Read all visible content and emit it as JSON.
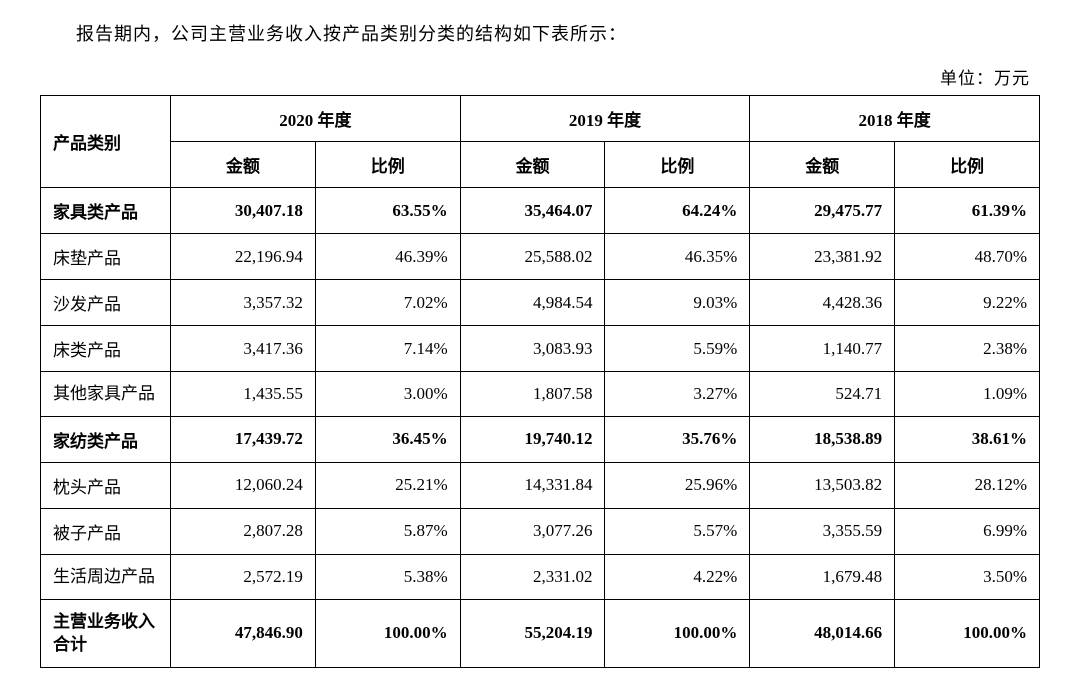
{
  "intro_text": "报告期内，公司主营业务收入按产品类别分类的结构如下表所示：",
  "unit_label": "单位：万元",
  "headers": {
    "category": "产品类别",
    "year2020": "2020 年度",
    "year2019": "2019 年度",
    "year2018": "2018 年度",
    "amount": "金额",
    "ratio": "比例"
  },
  "rows": [
    {
      "label": "家具类产品",
      "bold": true,
      "y2020_amount": "30,407.18",
      "y2020_ratio": "63.55%",
      "y2019_amount": "35,464.07",
      "y2019_ratio": "64.24%",
      "y2018_amount": "29,475.77",
      "y2018_ratio": "61.39%"
    },
    {
      "label": "床垫产品",
      "bold": false,
      "y2020_amount": "22,196.94",
      "y2020_ratio": "46.39%",
      "y2019_amount": "25,588.02",
      "y2019_ratio": "46.35%",
      "y2018_amount": "23,381.92",
      "y2018_ratio": "48.70%"
    },
    {
      "label": "沙发产品",
      "bold": false,
      "y2020_amount": "3,357.32",
      "y2020_ratio": "7.02%",
      "y2019_amount": "4,984.54",
      "y2019_ratio": "9.03%",
      "y2018_amount": "4,428.36",
      "y2018_ratio": "9.22%"
    },
    {
      "label": "床类产品",
      "bold": false,
      "y2020_amount": "3,417.36",
      "y2020_ratio": "7.14%",
      "y2019_amount": "3,083.93",
      "y2019_ratio": "5.59%",
      "y2018_amount": "1,140.77",
      "y2018_ratio": "2.38%"
    },
    {
      "label": "其他家具产品",
      "bold": false,
      "twoLine": true,
      "y2020_amount": "1,435.55",
      "y2020_ratio": "3.00%",
      "y2019_amount": "1,807.58",
      "y2019_ratio": "3.27%",
      "y2018_amount": "524.71",
      "y2018_ratio": "1.09%"
    },
    {
      "label": "家纺类产品",
      "bold": true,
      "y2020_amount": "17,439.72",
      "y2020_ratio": "36.45%",
      "y2019_amount": "19,740.12",
      "y2019_ratio": "35.76%",
      "y2018_amount": "18,538.89",
      "y2018_ratio": "38.61%"
    },
    {
      "label": "枕头产品",
      "bold": false,
      "y2020_amount": "12,060.24",
      "y2020_ratio": "25.21%",
      "y2019_amount": "14,331.84",
      "y2019_ratio": "25.96%",
      "y2018_amount": "13,503.82",
      "y2018_ratio": "28.12%"
    },
    {
      "label": "被子产品",
      "bold": false,
      "y2020_amount": "2,807.28",
      "y2020_ratio": "5.87%",
      "y2019_amount": "3,077.26",
      "y2019_ratio": "5.57%",
      "y2018_amount": "3,355.59",
      "y2018_ratio": "6.99%"
    },
    {
      "label": "生活周边产品",
      "bold": false,
      "twoLine": true,
      "y2020_amount": "2,572.19",
      "y2020_ratio": "5.38%",
      "y2019_amount": "2,331.02",
      "y2019_ratio": "4.22%",
      "y2018_amount": "1,679.48",
      "y2018_ratio": "3.50%"
    },
    {
      "label": "主营业务收入合计",
      "bold": true,
      "twoLine": true,
      "y2020_amount": "47,846.90",
      "y2020_ratio": "100.00%",
      "y2019_amount": "55,204.19",
      "y2019_ratio": "100.00%",
      "y2018_amount": "48,014.66",
      "y2018_ratio": "100.00%"
    }
  ]
}
